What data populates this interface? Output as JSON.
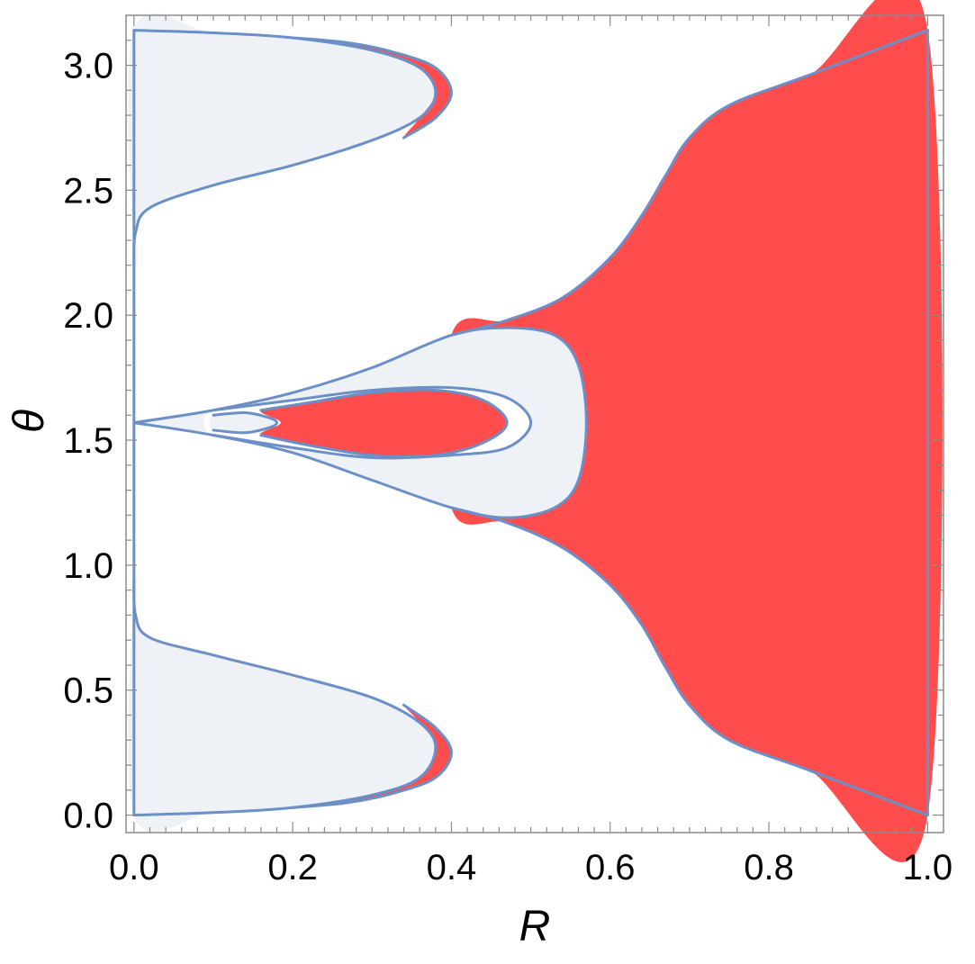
{
  "chart_data": {
    "type": "area",
    "title": "",
    "xlabel": "R",
    "ylabel": "θ",
    "xlim": [
      -0.01,
      1.02
    ],
    "ylim": [
      -0.07,
      3.2
    ],
    "x_ticks": [
      "0.0",
      "0.2",
      "0.4",
      "0.6",
      "0.8",
      "1.0"
    ],
    "y_ticks": [
      "0.0",
      "0.5",
      "1.0",
      "1.5",
      "2.0",
      "2.5",
      "3.0"
    ],
    "grid": false,
    "colors": {
      "red_region": "#ff4d4d",
      "light_region": "#eef2f7",
      "boundary": "#6b8fc7",
      "frame": "#8a8a8a"
    },
    "regions": [
      {
        "name": "light-top-left",
        "fill": "light_region",
        "points": [
          [
            0.0,
            3.14
          ],
          [
            0.1,
            3.13
          ],
          [
            0.2,
            3.11
          ],
          [
            0.3,
            3.06
          ],
          [
            0.36,
            2.99
          ],
          [
            0.38,
            2.89
          ],
          [
            0.36,
            2.79
          ],
          [
            0.3,
            2.7
          ],
          [
            0.2,
            2.6
          ],
          [
            0.1,
            2.52
          ],
          [
            0.02,
            2.43
          ],
          [
            0.002,
            2.33
          ],
          [
            0.0,
            2.2
          ]
        ]
      },
      {
        "name": "red-top-left",
        "fill": "red_region",
        "points": [
          [
            0.2,
            3.11
          ],
          [
            0.27,
            3.09
          ],
          [
            0.33,
            3.05
          ],
          [
            0.38,
            2.99
          ],
          [
            0.4,
            2.89
          ],
          [
            0.38,
            2.79
          ],
          [
            0.34,
            2.71
          ],
          [
            0.36,
            2.79
          ],
          [
            0.38,
            2.89
          ],
          [
            0.36,
            2.99
          ],
          [
            0.3,
            3.06
          ]
        ]
      },
      {
        "name": "light-bottom-left",
        "fill": "light_region",
        "points": [
          [
            0.0,
            0.0
          ],
          [
            0.1,
            0.01
          ],
          [
            0.2,
            0.03
          ],
          [
            0.3,
            0.08
          ],
          [
            0.36,
            0.15
          ],
          [
            0.38,
            0.27
          ],
          [
            0.36,
            0.37
          ],
          [
            0.3,
            0.47
          ],
          [
            0.2,
            0.56
          ],
          [
            0.1,
            0.64
          ],
          [
            0.02,
            0.71
          ],
          [
            0.002,
            0.8
          ],
          [
            0.0,
            0.94
          ]
        ]
      },
      {
        "name": "red-bottom-left",
        "fill": "red_region",
        "points": [
          [
            0.2,
            0.03
          ],
          [
            0.27,
            0.05
          ],
          [
            0.33,
            0.09
          ],
          [
            0.38,
            0.15
          ],
          [
            0.4,
            0.25
          ],
          [
            0.38,
            0.35
          ],
          [
            0.34,
            0.44
          ],
          [
            0.36,
            0.37
          ],
          [
            0.38,
            0.27
          ],
          [
            0.36,
            0.15
          ],
          [
            0.3,
            0.08
          ]
        ]
      },
      {
        "name": "red-right",
        "fill": "red_region",
        "points": [
          [
            0.4,
            1.92
          ],
          [
            0.47,
            1.98
          ],
          [
            0.54,
            2.07
          ],
          [
            0.6,
            2.23
          ],
          [
            0.64,
            2.4
          ],
          [
            0.67,
            2.56
          ],
          [
            0.7,
            2.71
          ],
          [
            0.75,
            2.84
          ],
          [
            0.85,
            2.96
          ],
          [
            1.0,
            3.14
          ],
          [
            1.0,
            0.0
          ],
          [
            0.85,
            0.18
          ],
          [
            0.75,
            0.3
          ],
          [
            0.7,
            0.44
          ],
          [
            0.67,
            0.59
          ],
          [
            0.64,
            0.76
          ],
          [
            0.6,
            0.92
          ],
          [
            0.54,
            1.07
          ],
          [
            0.47,
            1.17
          ],
          [
            0.4,
            1.23
          ]
        ]
      },
      {
        "name": "light-center",
        "fill": "light_region",
        "points": [
          [
            0.0,
            1.57
          ],
          [
            0.1,
            1.62
          ],
          [
            0.2,
            1.69
          ],
          [
            0.3,
            1.79
          ],
          [
            0.4,
            1.92
          ],
          [
            0.47,
            1.95
          ],
          [
            0.53,
            1.92
          ],
          [
            0.56,
            1.8
          ],
          [
            0.57,
            1.57
          ],
          [
            0.56,
            1.34
          ],
          [
            0.53,
            1.23
          ],
          [
            0.47,
            1.19
          ],
          [
            0.4,
            1.23
          ],
          [
            0.3,
            1.34
          ],
          [
            0.2,
            1.45
          ],
          [
            0.1,
            1.52
          ]
        ]
      },
      {
        "name": "white-center-ring",
        "fill": "white",
        "points": [
          [
            0.1,
            1.62
          ],
          [
            0.2,
            1.66
          ],
          [
            0.3,
            1.7
          ],
          [
            0.4,
            1.71
          ],
          [
            0.47,
            1.67
          ],
          [
            0.5,
            1.57
          ],
          [
            0.47,
            1.47
          ],
          [
            0.4,
            1.44
          ],
          [
            0.3,
            1.43
          ],
          [
            0.2,
            1.47
          ],
          [
            0.1,
            1.52
          ]
        ]
      },
      {
        "name": "red-center",
        "fill": "red_region",
        "points": [
          [
            0.16,
            1.62
          ],
          [
            0.22,
            1.65
          ],
          [
            0.3,
            1.69
          ],
          [
            0.38,
            1.7
          ],
          [
            0.44,
            1.66
          ],
          [
            0.47,
            1.57
          ],
          [
            0.44,
            1.49
          ],
          [
            0.38,
            1.44
          ],
          [
            0.3,
            1.44
          ],
          [
            0.22,
            1.48
          ],
          [
            0.16,
            1.52
          ],
          [
            0.185,
            1.57
          ]
        ]
      },
      {
        "name": "light-small-loop",
        "fill": "light_region",
        "points": [
          [
            0.1,
            1.6
          ],
          [
            0.14,
            1.61
          ],
          [
            0.17,
            1.59
          ],
          [
            0.18,
            1.57
          ],
          [
            0.17,
            1.55
          ],
          [
            0.14,
            1.53
          ],
          [
            0.1,
            1.54
          ]
        ]
      }
    ],
    "curves": [
      {
        "name": "left-edge-line",
        "points": [
          [
            0.0,
            0.0
          ],
          [
            0.0,
            3.14
          ]
        ]
      },
      {
        "name": "right-edge-line",
        "points": [
          [
            1.0,
            0.0
          ],
          [
            1.0,
            3.14
          ]
        ]
      },
      {
        "name": "lobe-top-inner",
        "points": [
          [
            0.0,
            3.14
          ],
          [
            0.1,
            3.13
          ],
          [
            0.2,
            3.11
          ],
          [
            0.3,
            3.06
          ],
          [
            0.36,
            2.99
          ],
          [
            0.38,
            2.89
          ],
          [
            0.36,
            2.79
          ],
          [
            0.3,
            2.7
          ],
          [
            0.2,
            2.6
          ],
          [
            0.1,
            2.52
          ],
          [
            0.02,
            2.43
          ],
          [
            0.002,
            2.33
          ],
          [
            0.0,
            2.2
          ]
        ]
      },
      {
        "name": "lobe-top-outer",
        "points": [
          [
            0.2,
            3.11
          ],
          [
            0.27,
            3.09
          ],
          [
            0.33,
            3.05
          ],
          [
            0.38,
            2.99
          ],
          [
            0.4,
            2.89
          ],
          [
            0.38,
            2.79
          ],
          [
            0.34,
            2.71
          ]
        ]
      },
      {
        "name": "lobe-bottom-inner",
        "points": [
          [
            0.0,
            0.0
          ],
          [
            0.1,
            0.01
          ],
          [
            0.2,
            0.03
          ],
          [
            0.3,
            0.08
          ],
          [
            0.36,
            0.15
          ],
          [
            0.38,
            0.27
          ],
          [
            0.36,
            0.37
          ],
          [
            0.3,
            0.47
          ],
          [
            0.2,
            0.56
          ],
          [
            0.1,
            0.64
          ],
          [
            0.02,
            0.71
          ],
          [
            0.002,
            0.8
          ],
          [
            0.0,
            0.94
          ]
        ]
      },
      {
        "name": "lobe-bottom-outer",
        "points": [
          [
            0.2,
            0.03
          ],
          [
            0.27,
            0.05
          ],
          [
            0.33,
            0.09
          ],
          [
            0.38,
            0.15
          ],
          [
            0.4,
            0.25
          ],
          [
            0.38,
            0.35
          ],
          [
            0.34,
            0.44
          ]
        ]
      },
      {
        "name": "right-region-upper",
        "points": [
          [
            0.4,
            1.92
          ],
          [
            0.47,
            1.98
          ],
          [
            0.54,
            2.07
          ],
          [
            0.6,
            2.23
          ],
          [
            0.64,
            2.4
          ],
          [
            0.67,
            2.56
          ],
          [
            0.7,
            2.71
          ],
          [
            0.75,
            2.84
          ],
          [
            0.85,
            2.96
          ],
          [
            1.0,
            3.14
          ]
        ]
      },
      {
        "name": "right-region-lower",
        "points": [
          [
            0.4,
            1.23
          ],
          [
            0.47,
            1.17
          ],
          [
            0.54,
            1.07
          ],
          [
            0.6,
            0.92
          ],
          [
            0.64,
            0.76
          ],
          [
            0.67,
            0.59
          ],
          [
            0.7,
            0.44
          ],
          [
            0.75,
            0.3
          ],
          [
            0.85,
            0.18
          ],
          [
            1.0,
            0.0
          ]
        ]
      },
      {
        "name": "center-light-boundary",
        "points": [
          [
            0.0,
            1.57
          ],
          [
            0.1,
            1.62
          ],
          [
            0.2,
            1.69
          ],
          [
            0.3,
            1.79
          ],
          [
            0.4,
            1.92
          ],
          [
            0.47,
            1.95
          ],
          [
            0.53,
            1.92
          ],
          [
            0.56,
            1.8
          ],
          [
            0.57,
            1.57
          ],
          [
            0.56,
            1.34
          ],
          [
            0.53,
            1.23
          ],
          [
            0.47,
            1.19
          ],
          [
            0.4,
            1.23
          ],
          [
            0.3,
            1.34
          ],
          [
            0.2,
            1.45
          ],
          [
            0.1,
            1.52
          ],
          [
            0.0,
            1.57
          ]
        ]
      },
      {
        "name": "center-ring-boundary",
        "points": [
          [
            0.1,
            1.62
          ],
          [
            0.2,
            1.66
          ],
          [
            0.3,
            1.7
          ],
          [
            0.4,
            1.71
          ],
          [
            0.47,
            1.67
          ],
          [
            0.5,
            1.57
          ],
          [
            0.47,
            1.47
          ],
          [
            0.4,
            1.44
          ],
          [
            0.3,
            1.43
          ],
          [
            0.2,
            1.47
          ],
          [
            0.1,
            1.52
          ]
        ]
      },
      {
        "name": "center-red-boundary",
        "points": [
          [
            0.16,
            1.62
          ],
          [
            0.22,
            1.65
          ],
          [
            0.3,
            1.69
          ],
          [
            0.38,
            1.7
          ],
          [
            0.44,
            1.66
          ],
          [
            0.47,
            1.57
          ],
          [
            0.44,
            1.49
          ],
          [
            0.38,
            1.44
          ],
          [
            0.3,
            1.44
          ],
          [
            0.22,
            1.48
          ],
          [
            0.16,
            1.52
          ]
        ]
      },
      {
        "name": "small-loop-boundary",
        "points": [
          [
            0.1,
            1.6
          ],
          [
            0.14,
            1.61
          ],
          [
            0.17,
            1.59
          ],
          [
            0.18,
            1.57
          ],
          [
            0.17,
            1.55
          ],
          [
            0.14,
            1.53
          ],
          [
            0.1,
            1.54
          ]
        ]
      }
    ]
  }
}
